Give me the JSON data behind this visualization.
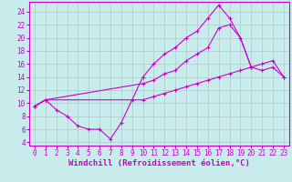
{
  "background_color": "#c8ecec",
  "grid_color": "#b0c8c8",
  "line_color": "#cc00cc",
  "xlim": [
    -0.5,
    23.5
  ],
  "ylim": [
    3.5,
    25.5
  ],
  "xticks": [
    0,
    1,
    2,
    3,
    4,
    5,
    6,
    7,
    8,
    9,
    10,
    11,
    12,
    13,
    14,
    15,
    16,
    17,
    18,
    19,
    20,
    21,
    22,
    23
  ],
  "yticks": [
    4,
    6,
    8,
    10,
    12,
    14,
    16,
    18,
    20,
    22,
    24
  ],
  "xlabel": "Windchill (Refroidissement éolien,°C)",
  "series1_x": [
    0,
    1,
    2,
    3,
    4,
    5,
    6,
    7,
    8,
    9,
    10,
    11,
    12,
    13,
    14,
    15,
    16,
    17,
    18,
    19,
    20
  ],
  "series1_y": [
    9.5,
    10.5,
    9.0,
    8.0,
    6.5,
    6.0,
    6.0,
    4.5,
    7.0,
    10.5,
    14.0,
    16.0,
    17.5,
    18.5,
    20.0,
    21.0,
    23.0,
    25.0,
    23.0,
    20.0,
    15.5
  ],
  "series2_x": [
    0,
    1,
    10,
    11,
    12,
    13,
    14,
    15,
    16,
    17,
    18,
    19,
    20,
    21,
    22,
    23
  ],
  "series2_y": [
    9.5,
    10.5,
    13.0,
    13.5,
    14.5,
    15.0,
    16.5,
    17.5,
    18.5,
    21.5,
    22.0,
    20.0,
    15.5,
    15.0,
    15.5,
    14.0
  ],
  "series3_x": [
    0,
    1,
    10,
    11,
    12,
    13,
    14,
    15,
    16,
    17,
    18,
    19,
    20,
    21,
    22,
    23
  ],
  "series3_y": [
    9.5,
    10.5,
    10.5,
    11.0,
    11.5,
    12.0,
    12.5,
    13.0,
    13.5,
    14.0,
    14.5,
    15.0,
    15.5,
    16.0,
    16.5,
    14.0
  ],
  "tick_fontsize": 5.5,
  "axis_fontsize": 6.5
}
